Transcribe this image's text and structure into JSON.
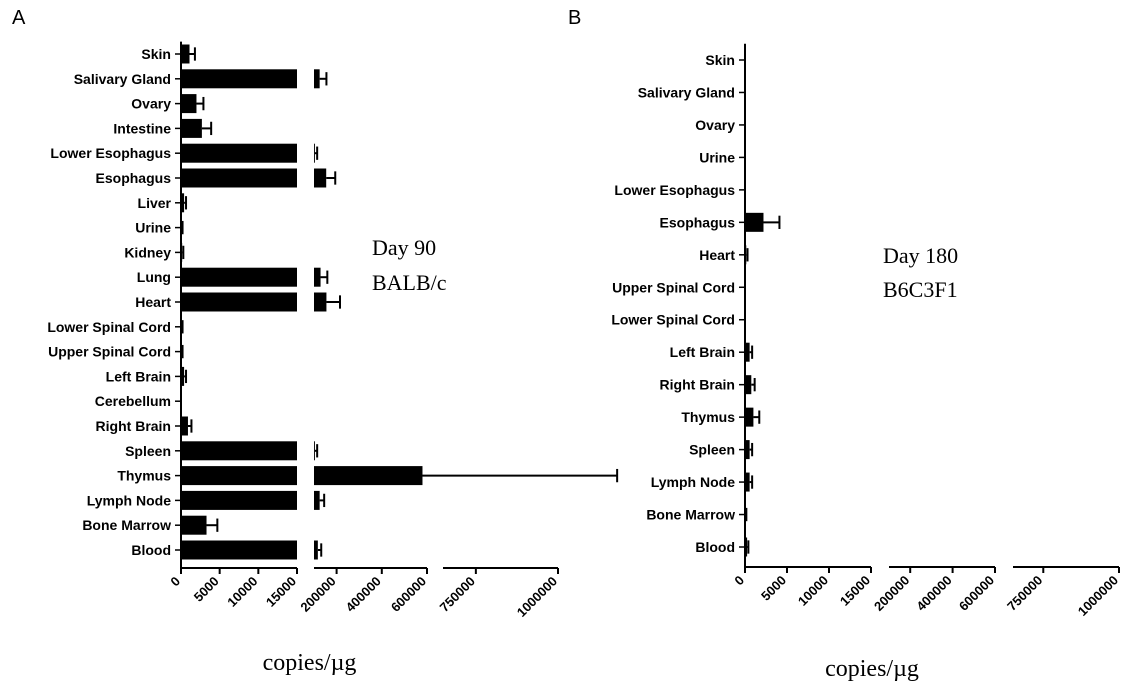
{
  "chart_data": [
    {
      "panel": "A",
      "type": "bar",
      "orientation": "horizontal",
      "annotation": [
        "Day 90",
        "BALB/c"
      ],
      "xlabel": "copies/µg",
      "ylabel": "",
      "broken_x_axis": true,
      "x_segments": [
        {
          "range": [
            0,
            15000
          ],
          "ticks": [
            "0",
            "5000",
            "10000",
            "15000"
          ]
        },
        {
          "range": [
            100000,
            600000
          ],
          "ticks": [
            "200000",
            "400000",
            "600000"
          ]
        },
        {
          "range": [
            650000,
            1000000
          ],
          "ticks": [
            "750000",
            "1000000"
          ]
        }
      ],
      "categories": [
        "Skin",
        "Salivary Gland",
        "Ovary",
        "Intestine",
        "Lower Esophagus",
        "Esophagus",
        "Liver",
        "Urine",
        "Kidney",
        "Lung",
        "Heart",
        "Lower Spinal Cord",
        "Upper Spinal Cord",
        "Left Brain",
        "Cerebellum",
        "Right Brain",
        "Spleen",
        "Thymus",
        "Lymph Node",
        "Bone Marrow",
        "Blood"
      ],
      "values": [
        1100,
        125000,
        2000,
        2700,
        104000,
        154000,
        400,
        100,
        150,
        129000,
        155000,
        100,
        100,
        400,
        50,
        900,
        104000,
        580000,
        125000,
        3300,
        117000
      ],
      "error": [
        700,
        30000,
        900,
        1200,
        10000,
        40000,
        250,
        100,
        150,
        30000,
        60000,
        100,
        100,
        250,
        50,
        450,
        10000,
        600000,
        20000,
        1400,
        15000
      ]
    },
    {
      "panel": "B",
      "type": "bar",
      "orientation": "horizontal",
      "annotation": [
        "Day 180",
        "B6C3F1"
      ],
      "xlabel": "copies/µg",
      "ylabel": "",
      "broken_x_axis": true,
      "x_segments": [
        {
          "range": [
            0,
            15000
          ],
          "ticks": [
            "0",
            "5000",
            "10000",
            "15000"
          ]
        },
        {
          "range": [
            100000,
            600000
          ],
          "ticks": [
            "200000",
            "400000",
            "600000"
          ]
        },
        {
          "range": [
            650000,
            1000000
          ],
          "ticks": [
            "750000",
            "1000000"
          ]
        }
      ],
      "categories": [
        "Skin",
        "Salivary Gland",
        "Ovary",
        "Urine",
        "Lower Esophagus",
        "Esophagus",
        "Heart",
        "Upper Spinal Cord",
        "Lower Spinal Cord",
        "Left Brain",
        "Right Brain",
        "Thymus",
        "Spleen",
        "Lymph Node",
        "Bone Marrow",
        "Blood"
      ],
      "values": [
        30,
        30,
        30,
        30,
        30,
        2200,
        150,
        30,
        30,
        550,
        750,
        1000,
        550,
        550,
        80,
        250
      ],
      "error": [
        30,
        30,
        30,
        30,
        30,
        1900,
        150,
        30,
        30,
        300,
        400,
        700,
        300,
        300,
        80,
        150
      ]
    }
  ]
}
